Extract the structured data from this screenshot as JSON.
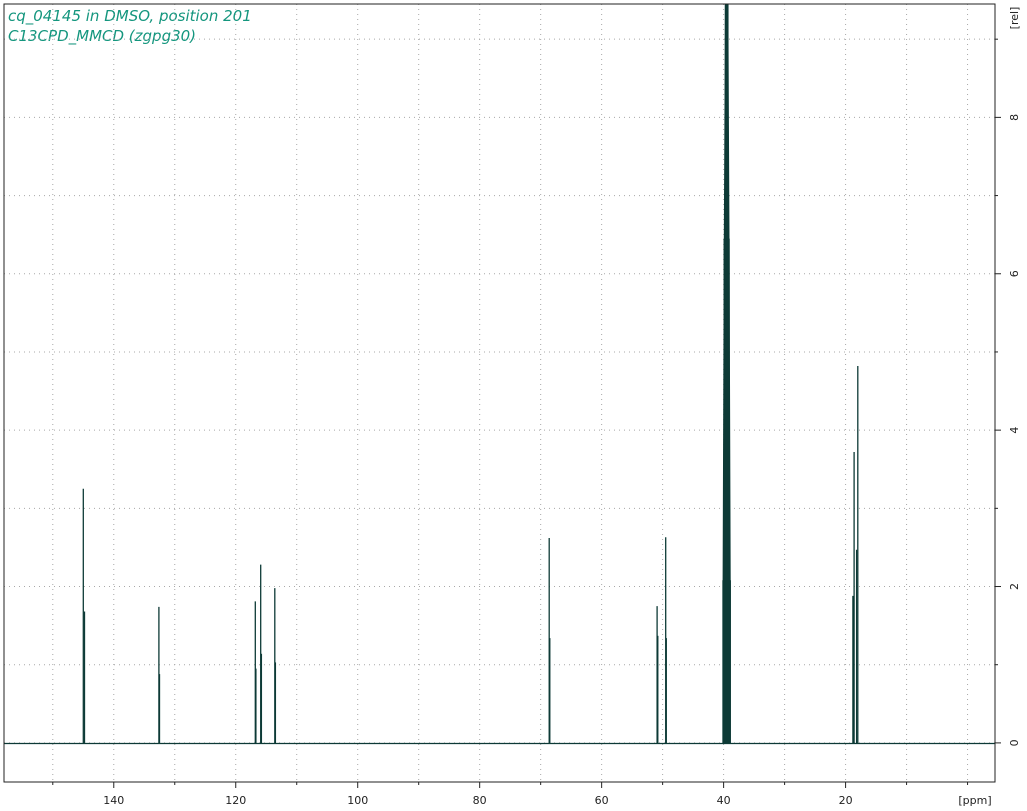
{
  "header": {
    "line1": "cq_04145 in DMSO, position 201",
    "line2": "C13CPD_MMCD (zgpg30)"
  },
  "colors": {
    "title": "#14967e",
    "trace": "#0d3a36",
    "grid": "#a8a8a8",
    "axis": "#222222"
  },
  "chart_data": {
    "type": "line",
    "title": "cq_04145 in DMSO, position 201 — C13CPD_MMCD (zgpg30)",
    "xlabel": "[ppm]",
    "ylabel": "[rel]",
    "x_reversed": true,
    "xlim": [
      -4.5,
      158
    ],
    "ylim": [
      -0.5,
      9.45
    ],
    "x_ticks": [
      20,
      40,
      60,
      80,
      100,
      120,
      140
    ],
    "y_ticks": [
      0,
      2,
      4,
      6,
      8
    ],
    "grid": true,
    "series": [
      {
        "peaks": [
          {
            "ppm": 145.0,
            "height": 3.25
          },
          {
            "ppm": 144.8,
            "height": 1.68
          },
          {
            "ppm": 132.6,
            "height": 1.74
          },
          {
            "ppm": 132.5,
            "height": 0.88
          },
          {
            "ppm": 116.8,
            "height": 1.81
          },
          {
            "ppm": 116.7,
            "height": 0.95
          },
          {
            "ppm": 115.9,
            "height": 2.28
          },
          {
            "ppm": 115.8,
            "height": 1.14
          },
          {
            "ppm": 113.6,
            "height": 1.98
          },
          {
            "ppm": 113.5,
            "height": 1.03
          },
          {
            "ppm": 68.6,
            "height": 2.62
          },
          {
            "ppm": 68.5,
            "height": 1.34
          },
          {
            "ppm": 50.9,
            "height": 1.75
          },
          {
            "ppm": 50.8,
            "height": 1.37
          },
          {
            "ppm": 49.5,
            "height": 2.63
          },
          {
            "ppm": 49.4,
            "height": 1.34
          },
          {
            "ppm": 40.1,
            "height": 2.08
          },
          {
            "ppm": 39.9,
            "height": 6.45
          },
          {
            "ppm": 39.7,
            "height": 9.45
          },
          {
            "ppm": 39.5,
            "height": 9.45
          },
          {
            "ppm": 39.3,
            "height": 9.45
          },
          {
            "ppm": 39.1,
            "height": 6.45
          },
          {
            "ppm": 38.9,
            "height": 2.08
          },
          {
            "ppm": 18.8,
            "height": 1.88
          },
          {
            "ppm": 18.6,
            "height": 3.72
          },
          {
            "ppm": 18.2,
            "height": 2.47
          },
          {
            "ppm": 18.0,
            "height": 4.82
          }
        ]
      }
    ]
  }
}
